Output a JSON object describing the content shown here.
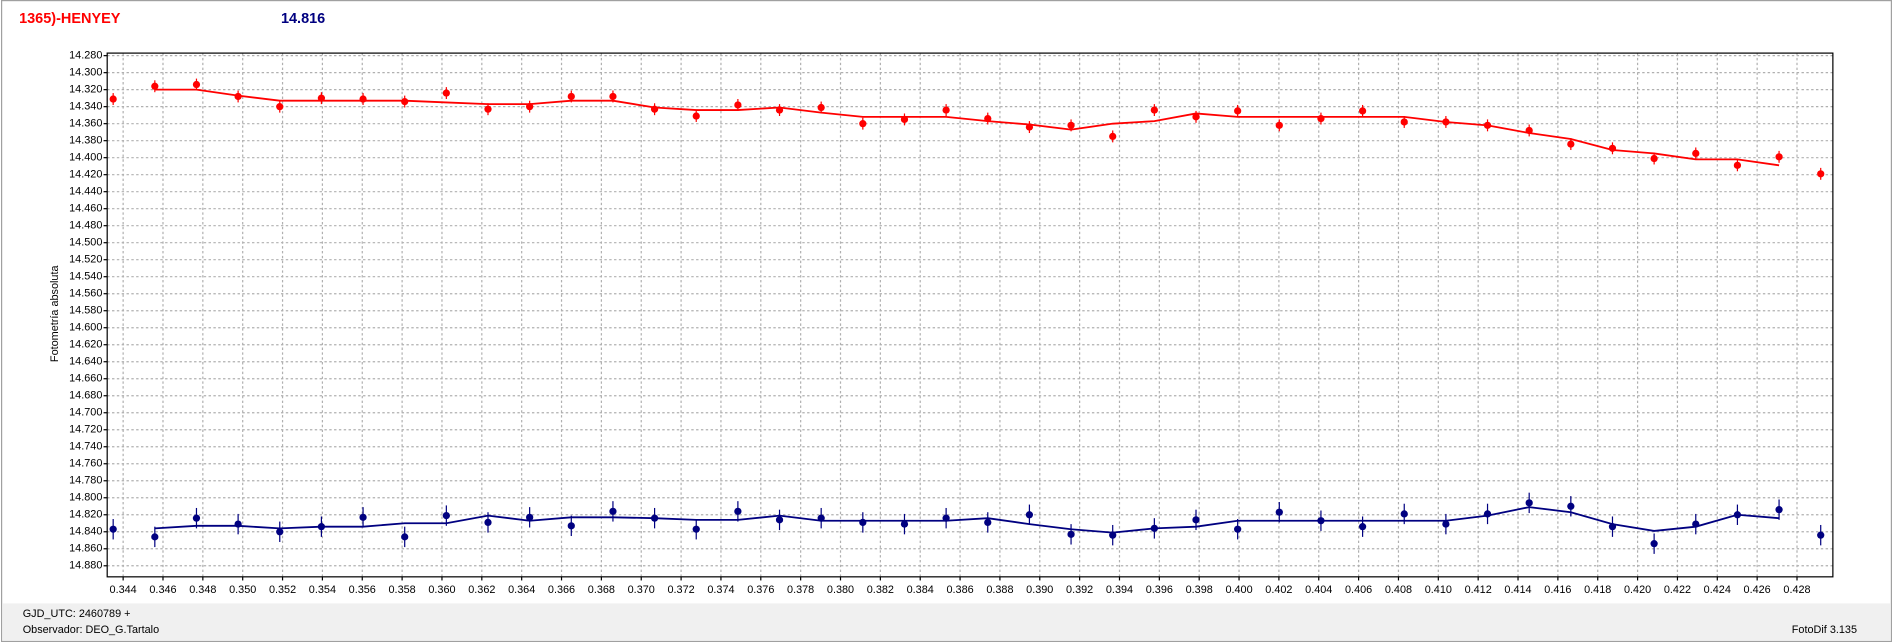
{
  "chart_data": {
    "type": "scatter",
    "title": "1365)-HENYEY",
    "subtitle": "14.816",
    "y_label": "Fotometría absoluta",
    "footer": {
      "gjd": "GJD_UTC: 2460789 +",
      "observer": "Observador: DEO_G.Tartalo",
      "software": "FotoDif 3.135"
    },
    "y_inverted": true,
    "grid": true,
    "xlim": [
      0.3432,
      0.4298
    ],
    "ylim": [
      14.277,
      14.893
    ],
    "xticks": [
      0.344,
      0.346,
      0.348,
      {
        "value": 0.35,
        "label": "0.350"
      },
      0.352,
      0.354,
      0.356,
      0.358,
      {
        "value": 0.36,
        "label": "0.360"
      },
      0.362,
      0.364,
      0.366,
      0.368,
      {
        "value": 0.37,
        "label": "0.370"
      },
      0.372,
      0.374,
      0.376,
      0.378,
      {
        "value": 0.38,
        "label": "0.380"
      },
      0.382,
      0.384,
      0.386,
      0.388,
      {
        "value": 0.39,
        "label": "0.390"
      },
      0.392,
      0.394,
      0.396,
      0.398,
      {
        "value": 0.4,
        "label": "0.400"
      },
      0.402,
      0.404,
      0.406,
      0.408,
      {
        "value": 0.41,
        "label": "0.410"
      },
      0.412,
      0.414,
      0.416,
      0.418,
      {
        "value": 0.42,
        "label": "0.420"
      },
      0.422,
      0.424,
      0.426,
      0.428
    ],
    "yticks": [
      {
        "value": 14.28,
        "label": "14.280"
      },
      {
        "value": 14.3,
        "label": "14.300"
      },
      {
        "value": 14.32,
        "label": "14.320"
      },
      {
        "value": 14.34,
        "label": "14.340"
      },
      {
        "value": 14.36,
        "label": "14.360"
      },
      {
        "value": 14.38,
        "label": "14.380"
      },
      {
        "value": 14.4,
        "label": "14.400"
      },
      {
        "value": 14.42,
        "label": "14.420"
      },
      {
        "value": 14.44,
        "label": "14.440"
      },
      {
        "value": 14.46,
        "label": "14.460"
      },
      {
        "value": 14.48,
        "label": "14.480"
      },
      {
        "value": 14.5,
        "label": "14.500"
      },
      {
        "value": 14.52,
        "label": "14.520"
      },
      {
        "value": 14.54,
        "label": "14.540"
      },
      {
        "value": 14.56,
        "label": "14.560"
      },
      {
        "value": 14.58,
        "label": "14.580"
      },
      {
        "value": 14.6,
        "label": "14.600"
      },
      {
        "value": 14.62,
        "label": "14.620"
      },
      {
        "value": 14.64,
        "label": "14.640"
      },
      {
        "value": 14.66,
        "label": "14.660"
      },
      {
        "value": 14.68,
        "label": "14.680"
      },
      {
        "value": 14.7,
        "label": "14.700"
      },
      {
        "value": 14.72,
        "label": "14.720"
      },
      {
        "value": 14.74,
        "label": "14.740"
      },
      {
        "value": 14.76,
        "label": "14.760"
      },
      {
        "value": 14.78,
        "label": "14.780"
      },
      {
        "value": 14.8,
        "label": "14.800"
      },
      {
        "value": 14.82,
        "label": "14.820"
      },
      {
        "value": 14.84,
        "label": "14.840"
      },
      {
        "value": 14.86,
        "label": "14.860"
      },
      {
        "value": 14.88,
        "label": "14.880"
      }
    ],
    "x": [
      0.3435,
      0.34559,
      0.34768,
      0.34977,
      0.35186,
      0.35395,
      0.35604,
      0.35813,
      0.36022,
      0.36231,
      0.3644,
      0.36649,
      0.36858,
      0.37067,
      0.37276,
      0.37485,
      0.37694,
      0.37903,
      0.38112,
      0.38321,
      0.3853,
      0.38739,
      0.38948,
      0.39157,
      0.39366,
      0.39575,
      0.39784,
      0.39993,
      0.40202,
      0.40411,
      0.4062,
      0.40829,
      0.41038,
      0.41247,
      0.41456,
      0.41665,
      0.41874,
      0.42083,
      0.42292,
      0.42501,
      0.4271,
      0.42919
    ],
    "series": [
      {
        "color": "#ff0000",
        "error": 0.007,
        "values": [
          14.331,
          14.316,
          14.314,
          14.328,
          14.34,
          14.33,
          14.331,
          14.334,
          14.324,
          14.343,
          14.34,
          14.328,
          14.328,
          14.343,
          14.351,
          14.338,
          14.344,
          14.341,
          14.36,
          14.355,
          14.344,
          14.354,
          14.364,
          14.362,
          14.375,
          14.344,
          14.352,
          14.345,
          14.362,
          14.354,
          14.345,
          14.358,
          14.358,
          14.362,
          14.368,
          14.384,
          14.389,
          14.401,
          14.395,
          14.409,
          14.399,
          14.419
        ],
        "fit": [
          null,
          14.32,
          14.32,
          14.327,
          14.333,
          14.333,
          14.333,
          14.333,
          14.335,
          14.337,
          14.337,
          14.333,
          14.333,
          14.341,
          14.344,
          14.344,
          14.341,
          14.347,
          14.352,
          14.352,
          14.352,
          14.357,
          14.361,
          14.367,
          14.36,
          14.357,
          14.348,
          14.352,
          14.352,
          14.352,
          14.352,
          14.352,
          14.358,
          14.362,
          14.371,
          14.378,
          14.391,
          14.395,
          14.402,
          14.402,
          14.409,
          null
        ]
      },
      {
        "color": "#000080",
        "error": 0.012,
        "values": [
          14.837,
          14.846,
          14.824,
          14.831,
          14.84,
          14.834,
          14.823,
          14.846,
          14.821,
          14.829,
          14.823,
          14.833,
          14.816,
          14.824,
          14.837,
          14.816,
          14.826,
          14.824,
          14.829,
          14.831,
          14.824,
          14.829,
          14.82,
          14.843,
          14.844,
          14.836,
          14.826,
          14.837,
          14.817,
          14.827,
          14.834,
          14.819,
          14.831,
          14.819,
          14.806,
          14.81,
          14.834,
          14.854,
          14.831,
          14.82,
          14.814,
          14.844
        ],
        "fit": [
          null,
          14.836,
          14.833,
          14.833,
          14.836,
          14.834,
          14.834,
          14.83,
          14.83,
          14.821,
          14.827,
          14.823,
          14.823,
          14.824,
          14.826,
          14.826,
          14.821,
          14.827,
          14.827,
          14.827,
          14.827,
          14.824,
          14.831,
          14.837,
          14.841,
          14.836,
          14.834,
          14.827,
          14.827,
          14.827,
          14.827,
          14.827,
          14.827,
          14.821,
          14.811,
          14.817,
          14.831,
          14.839,
          14.834,
          14.82,
          14.824,
          null
        ]
      }
    ]
  }
}
